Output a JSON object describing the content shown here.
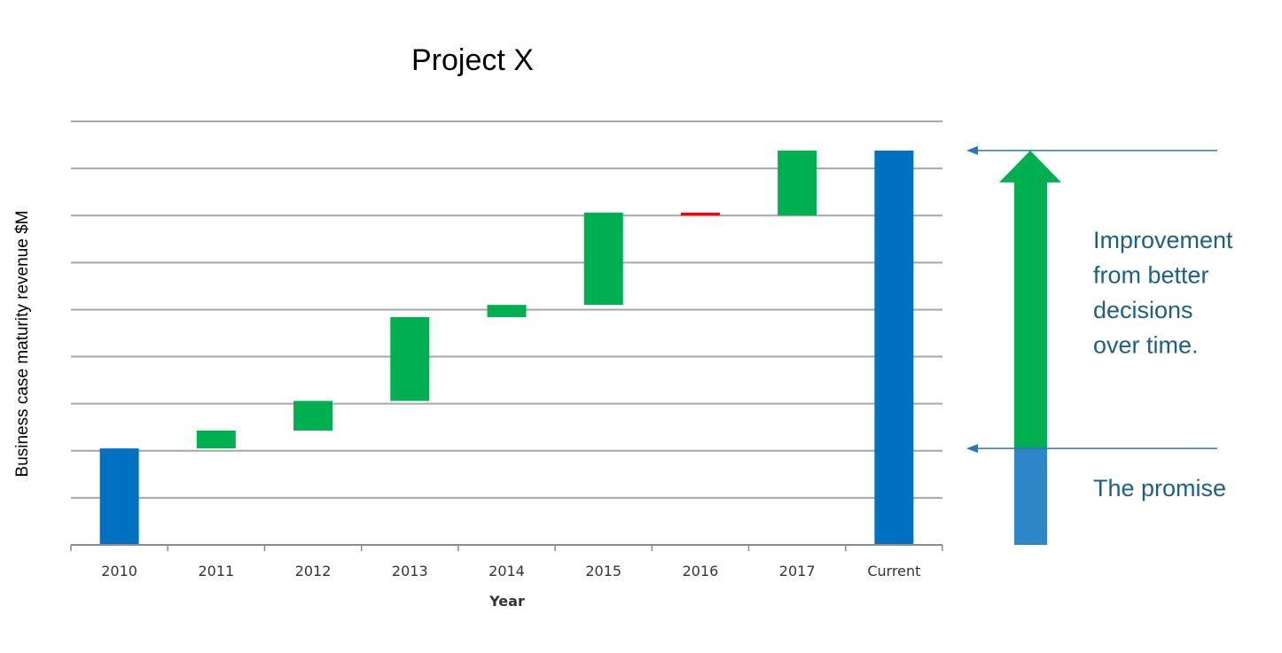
{
  "chart_data": {
    "type": "bar",
    "subtype": "waterfall",
    "title": "Project X",
    "xlabel": "Year",
    "ylabel": "Business case maturity revenue $M",
    "ylim": [
      0,
      9
    ],
    "grid": true,
    "categories": [
      "2010",
      "2011",
      "2012",
      "2013",
      "2014",
      "2015",
      "2016",
      "2017",
      "Current"
    ],
    "bars": [
      {
        "category": "2010",
        "kind": "total",
        "start": 0,
        "end": 2.05
      },
      {
        "category": "2011",
        "kind": "increase",
        "start": 2.05,
        "end": 2.43
      },
      {
        "category": "2012",
        "kind": "increase",
        "start": 2.43,
        "end": 3.06
      },
      {
        "category": "2013",
        "kind": "increase",
        "start": 3.06,
        "end": 4.84
      },
      {
        "category": "2014",
        "kind": "increase",
        "start": 4.84,
        "end": 5.1
      },
      {
        "category": "2015",
        "kind": "increase",
        "start": 5.1,
        "end": 7.06
      },
      {
        "category": "2016",
        "kind": "decrease",
        "start": 7.06,
        "end": 7.0
      },
      {
        "category": "2017",
        "kind": "increase",
        "start": 7.0,
        "end": 8.38
      },
      {
        "category": "Current",
        "kind": "total",
        "start": 0,
        "end": 8.38
      }
    ],
    "colors": {
      "total": "#0070c0",
      "increase": "#00b050",
      "decrease": "#ff0000"
    }
  },
  "annotations": {
    "improvement_lines": [
      "Improvement",
      "from better",
      "decisions",
      "over time."
    ],
    "promise": "The promise",
    "improvement_from": 2.05,
    "improvement_to": 8.38,
    "text_color": "#1f5f80",
    "arrow_line_color": "#2e75b6",
    "big_arrow_color": "#00b050",
    "promise_bar_color": "#2e86c8"
  }
}
